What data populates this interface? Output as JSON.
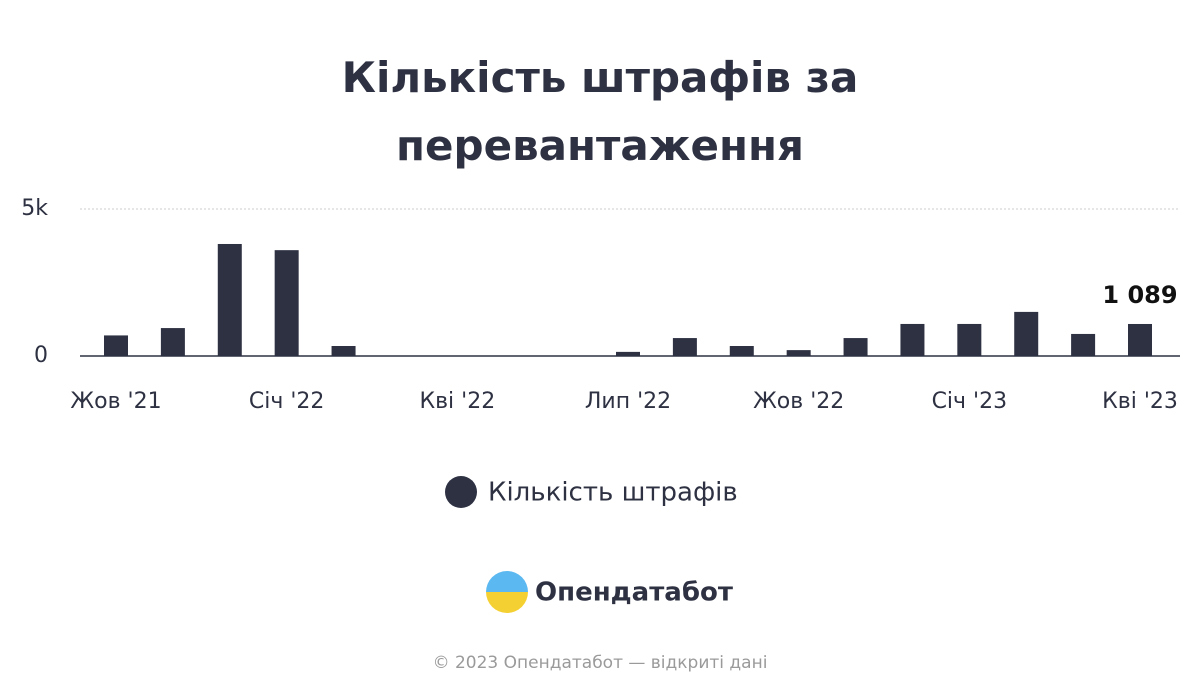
{
  "chart_data": {
    "type": "bar",
    "title": "Кількість штрафів за перевантаження",
    "categories": [
      "Жов '21",
      null,
      null,
      "Січ '22",
      null,
      null,
      "Кві '22",
      null,
      null,
      "Лип '22",
      null,
      null,
      "Жов '22",
      null,
      null,
      "Січ '23",
      null,
      null,
      "Кві '23"
    ],
    "series": [
      {
        "name": "Кількість штрафів",
        "color": "#2d3142",
        "values": [
          700,
          950,
          3810,
          3600,
          340,
          0,
          0,
          0,
          0,
          140,
          610,
          340,
          200,
          610,
          1090,
          1090,
          1500,
          750,
          1089
        ],
        "value_labels": [
          null,
          null,
          null,
          null,
          null,
          null,
          null,
          null,
          null,
          null,
          null,
          null,
          null,
          null,
          null,
          null,
          null,
          null,
          "1 089"
        ]
      }
    ],
    "ylim": [
      0,
      5000
    ],
    "yticks": [
      0,
      {
        "value": 5000,
        "label": "5k"
      }
    ],
    "grid": true,
    "legend": "bottom"
  },
  "branding": {
    "logo": "Опендатабот",
    "footer": "© 2023 Опендатабот — відкриті дані"
  }
}
